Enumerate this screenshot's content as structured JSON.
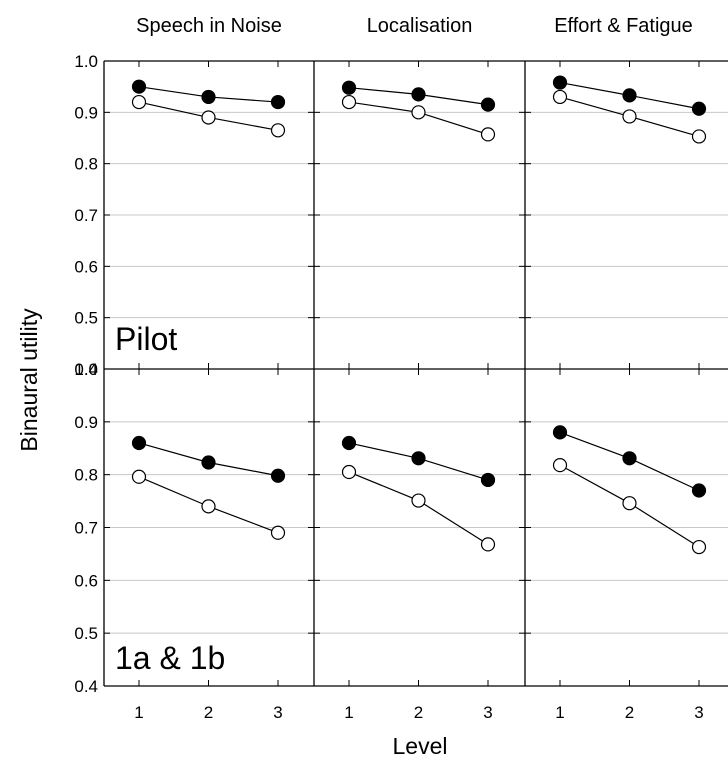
{
  "figure": {
    "ylabel": "Binaural utility",
    "xlabel": "Level",
    "row_labels": [
      "Pilot",
      "1a & 1b"
    ]
  },
  "chart_data": [
    {
      "type": "line",
      "row": "Pilot",
      "title": "Speech in Noise",
      "x": [
        1,
        2,
        3
      ],
      "xticks": [
        "1",
        "2",
        "3"
      ],
      "ylim": [
        0.4,
        1.0
      ],
      "yticks": [
        "0.4",
        "0.5",
        "0.6",
        "0.7",
        "0.8",
        "0.9",
        "1.0"
      ],
      "grid": true,
      "series": [
        {
          "marker": "filled",
          "values": [
            0.95,
            0.93,
            0.92
          ]
        },
        {
          "marker": "open",
          "values": [
            0.92,
            0.89,
            0.865
          ]
        }
      ]
    },
    {
      "type": "line",
      "row": "Pilot",
      "title": "Localisation",
      "x": [
        1,
        2,
        3
      ],
      "xticks": [
        "1",
        "2",
        "3"
      ],
      "ylim": [
        0.4,
        1.0
      ],
      "grid": true,
      "series": [
        {
          "marker": "filled",
          "values": [
            0.948,
            0.935,
            0.915
          ]
        },
        {
          "marker": "open",
          "values": [
            0.92,
            0.9,
            0.857
          ]
        }
      ]
    },
    {
      "type": "line",
      "row": "Pilot",
      "title": "Effort & Fatigue",
      "x": [
        1,
        2,
        3
      ],
      "xticks": [
        "1",
        "2",
        "3"
      ],
      "ylim": [
        0.4,
        1.0
      ],
      "grid": true,
      "series": [
        {
          "marker": "filled",
          "values": [
            0.958,
            0.933,
            0.907
          ]
        },
        {
          "marker": "open",
          "values": [
            0.93,
            0.892,
            0.853
          ]
        }
      ]
    },
    {
      "type": "line",
      "row": "1a & 1b",
      "title": "",
      "x": [
        1,
        2,
        3
      ],
      "xticks": [
        "1",
        "2",
        "3"
      ],
      "ylim": [
        0.4,
        1.0
      ],
      "yticks": [
        "0.4",
        "0.5",
        "0.6",
        "0.7",
        "0.8",
        "0.9",
        "1.0"
      ],
      "grid": true,
      "series": [
        {
          "marker": "filled",
          "values": [
            0.86,
            0.823,
            0.798
          ]
        },
        {
          "marker": "open",
          "values": [
            0.796,
            0.74,
            0.69
          ]
        }
      ]
    },
    {
      "type": "line",
      "row": "1a & 1b",
      "title": "",
      "x": [
        1,
        2,
        3
      ],
      "xticks": [
        "1",
        "2",
        "3"
      ],
      "ylim": [
        0.4,
        1.0
      ],
      "grid": true,
      "series": [
        {
          "marker": "filled",
          "values": [
            0.86,
            0.831,
            0.79
          ]
        },
        {
          "marker": "open",
          "values": [
            0.805,
            0.751,
            0.668
          ]
        }
      ]
    },
    {
      "type": "line",
      "row": "1a & 1b",
      "title": "",
      "x": [
        1,
        2,
        3
      ],
      "xticks": [
        "1",
        "2",
        "3"
      ],
      "ylim": [
        0.4,
        1.0
      ],
      "grid": true,
      "series": [
        {
          "marker": "filled",
          "values": [
            0.88,
            0.831,
            0.77
          ]
        },
        {
          "marker": "open",
          "values": [
            0.818,
            0.746,
            0.663
          ]
        }
      ]
    }
  ]
}
